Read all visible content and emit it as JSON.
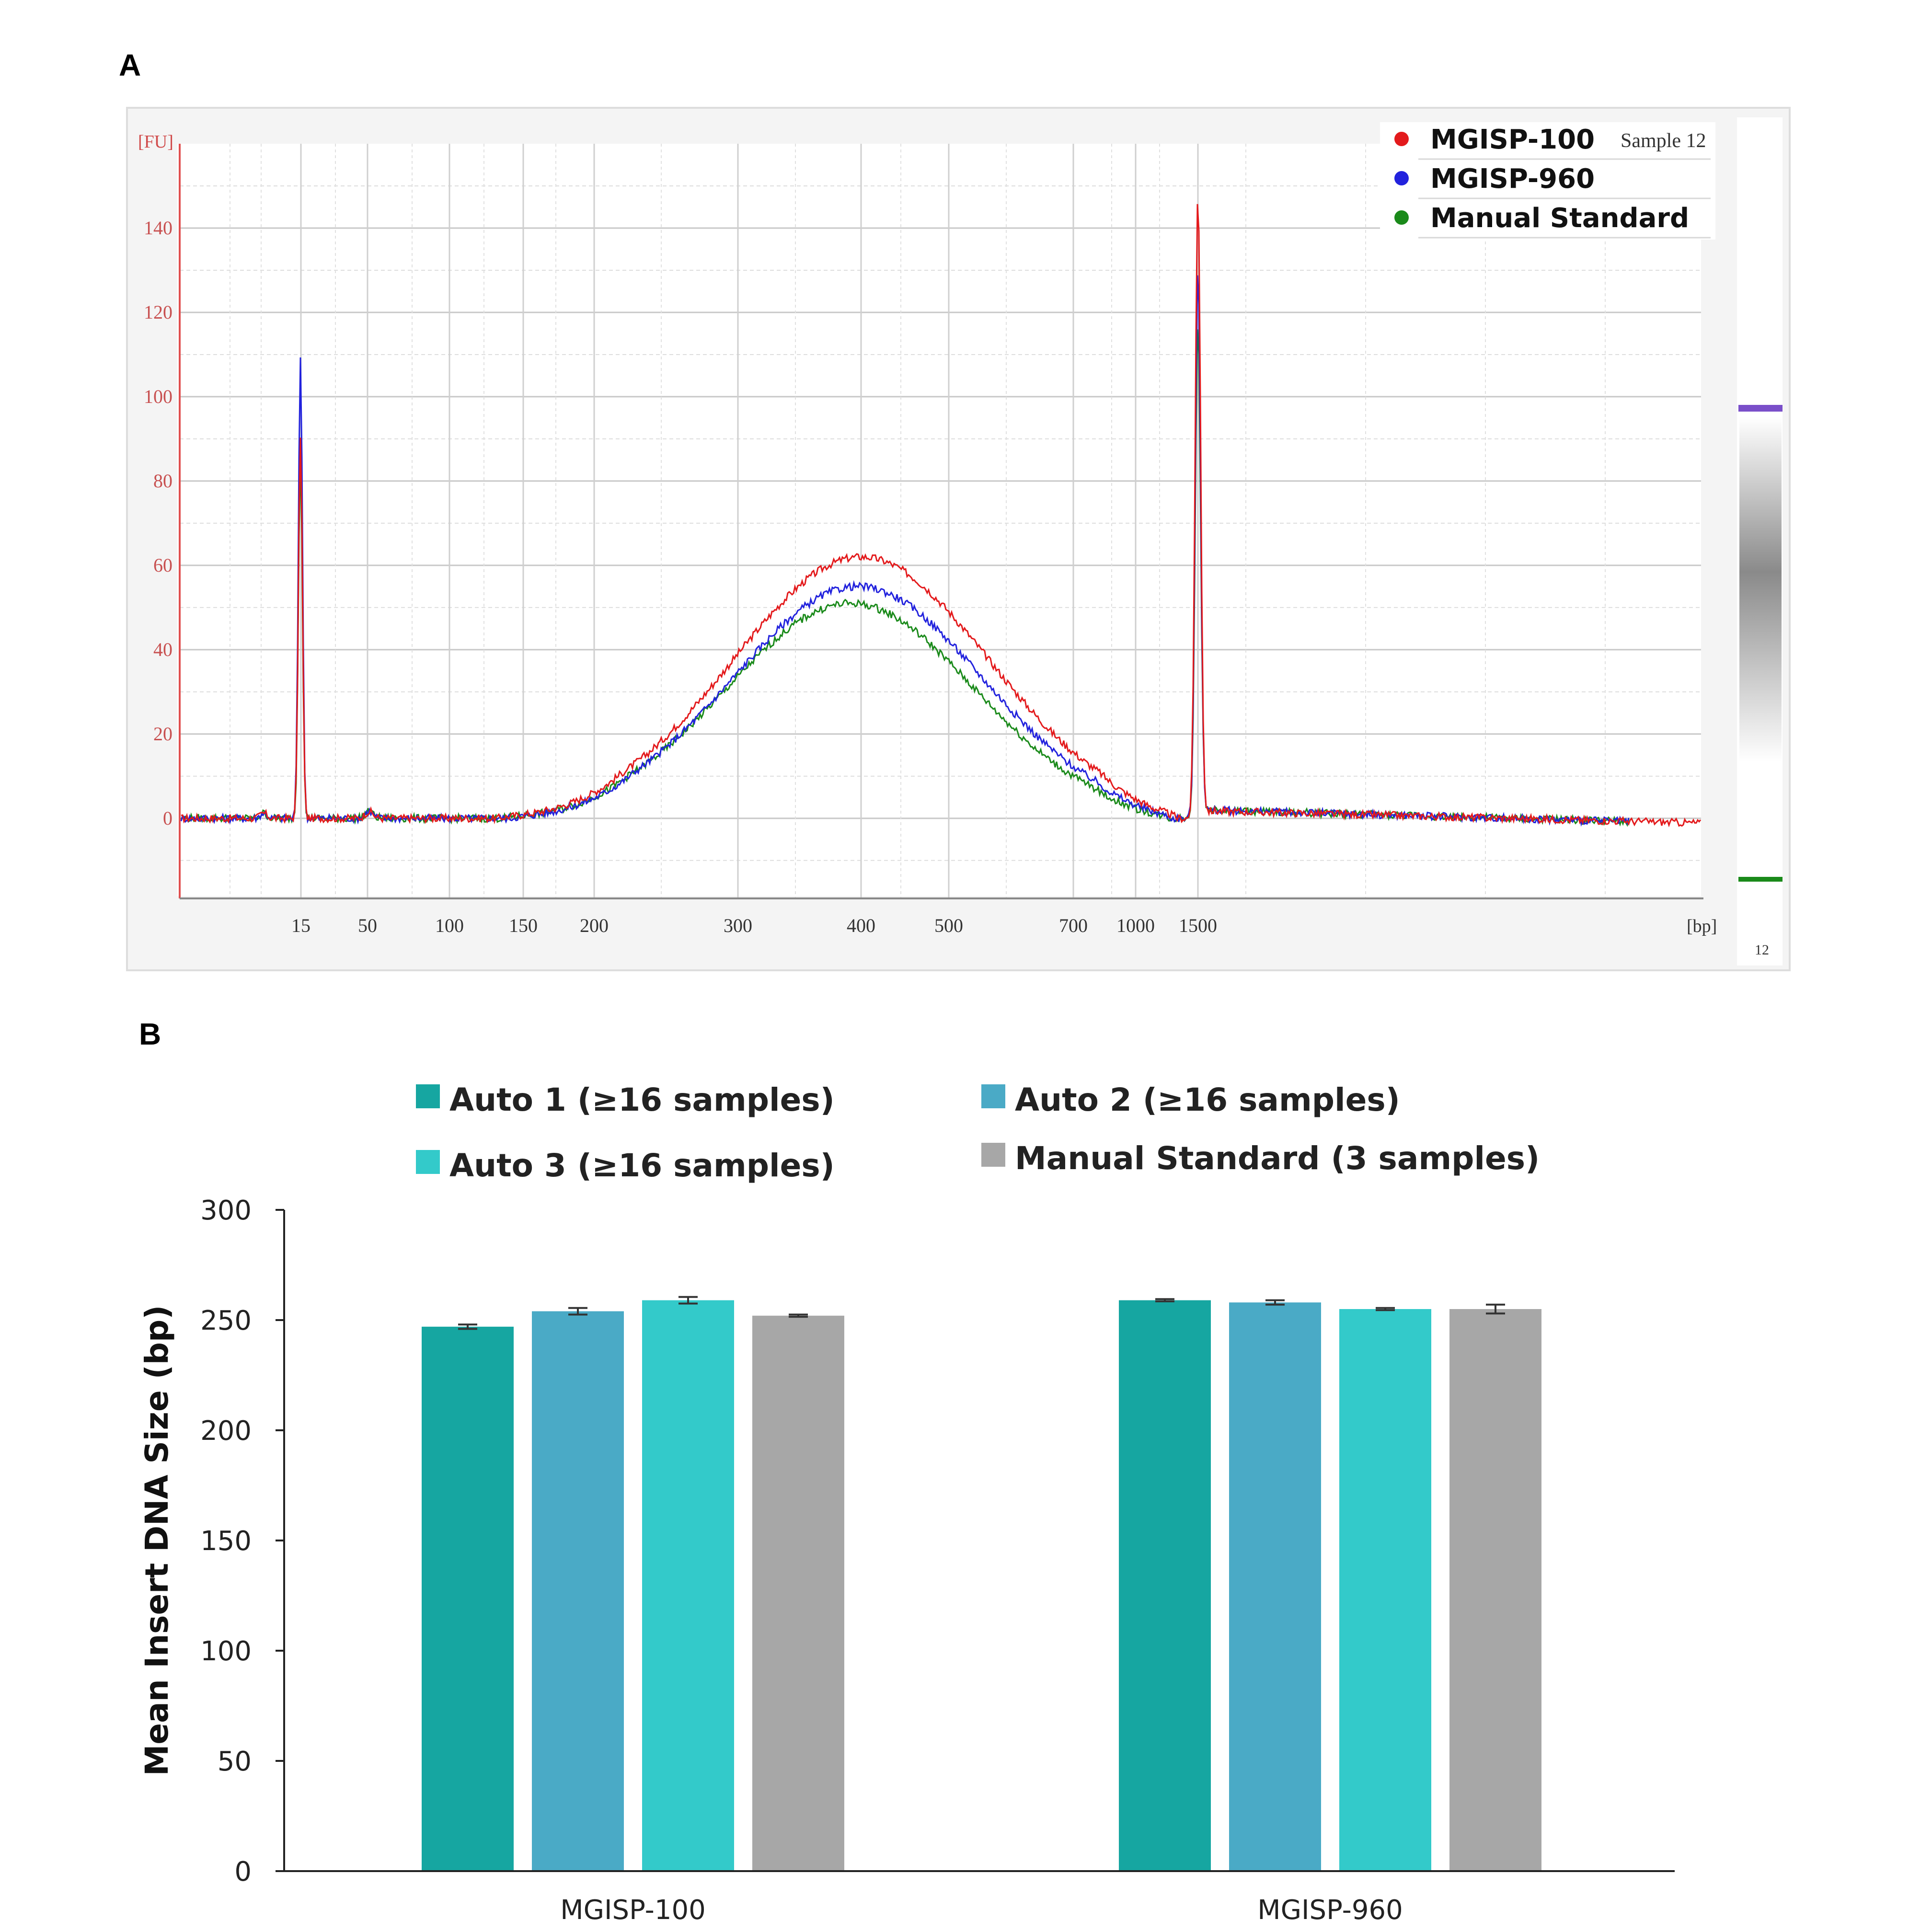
{
  "panels": {
    "a": "A",
    "b": "B"
  },
  "chart_data": [
    {
      "type": "line",
      "ylabel": "[FU]",
      "xlabel": "[bp]",
      "sample_label": "Sample 12",
      "lane_label": "12",
      "x_ticks": [
        "15",
        "50",
        "100",
        "150",
        "200",
        "300",
        "400",
        "500",
        "700",
        "1000",
        "1500"
      ],
      "y_ticks": [
        0,
        20,
        40,
        60,
        80,
        100,
        120,
        140
      ],
      "ylim": [
        -19,
        160
      ],
      "legend_position": "top-right",
      "grid": true,
      "series": [
        {
          "name": "MGISP-100",
          "color": "#e31a1c",
          "marker_peak": 91,
          "upper_peak": 148,
          "smear_peak": 62
        },
        {
          "name": "MGISP-960",
          "color": "#2222dd",
          "marker_peak": 110,
          "upper_peak": 130,
          "smear_peak": 55
        },
        {
          "name": "Manual Standard",
          "color": "#1a8a1a",
          "marker_peak": 87,
          "upper_peak": 118,
          "smear_peak": 51
        }
      ]
    },
    {
      "type": "bar",
      "ylabel": "Mean Insert DNA Size (bp)",
      "ylim": [
        0,
        300
      ],
      "yticks": [
        0,
        50,
        100,
        150,
        200,
        250,
        300
      ],
      "categories": [
        "MGISP-100",
        "MGISP-960"
      ],
      "legend_position": "top",
      "series": [
        {
          "name": "Auto 1 (≥16 samples)",
          "color": "#16a6a1",
          "values": [
            247,
            259
          ],
          "errors": [
            1,
            0.5
          ]
        },
        {
          "name": "Auto 2 (≥16 samples)",
          "color": "#4aaac6",
          "values": [
            254,
            258
          ],
          "errors": [
            1.5,
            1
          ]
        },
        {
          "name": "Auto 3 (≥16 samples)",
          "color": "#33caca",
          "values": [
            259,
            255
          ],
          "errors": [
            1.5,
            0.5
          ]
        },
        {
          "name": "Manual Standard (3 samples)",
          "color": "#a7a7a7",
          "values": [
            252,
            255
          ],
          "errors": [
            0.5,
            2
          ]
        }
      ]
    }
  ]
}
